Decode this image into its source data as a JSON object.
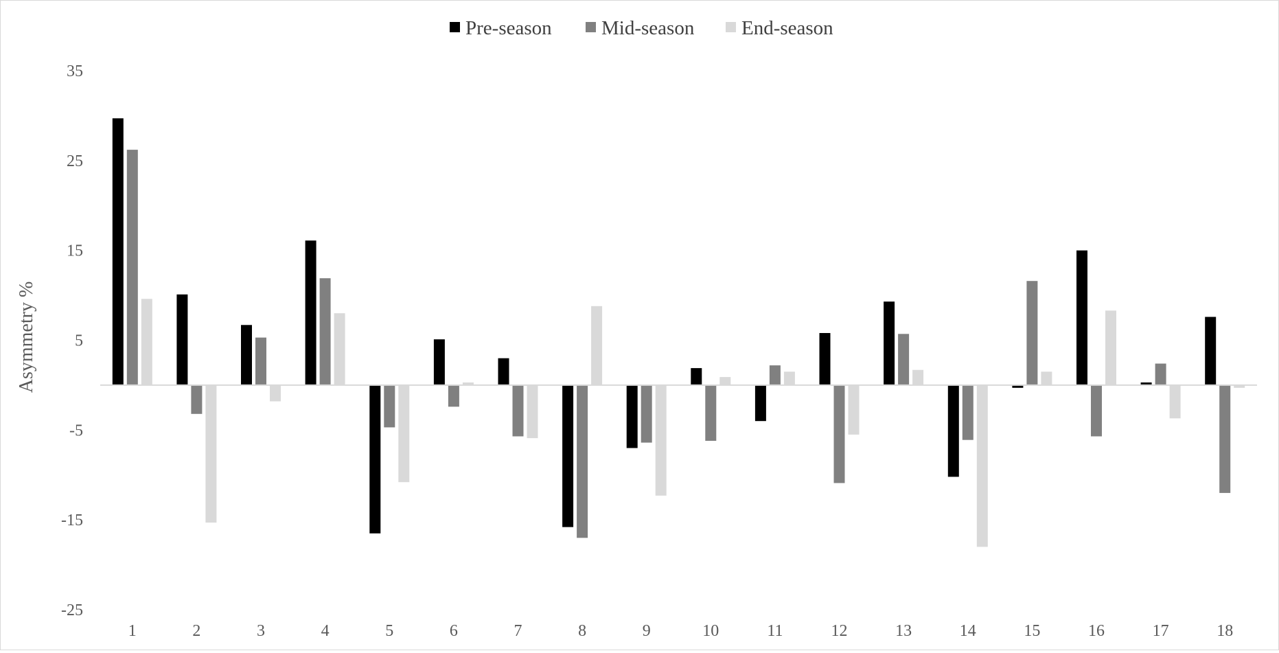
{
  "chart_data": {
    "type": "bar",
    "title": "",
    "xlabel": "",
    "ylabel": "Asymmetry %",
    "ylim": [
      -25,
      35
    ],
    "y_ticks": [
      35,
      25,
      15,
      5,
      -5,
      -15,
      -25
    ],
    "grid": false,
    "legend_position": "top-center",
    "categories": [
      "1",
      "2",
      "3",
      "4",
      "5",
      "6",
      "7",
      "8",
      "9",
      "10",
      "11",
      "12",
      "13",
      "14",
      "15",
      "16",
      "17",
      "18"
    ],
    "series": [
      {
        "name": "Pre-season",
        "color": "#000000",
        "values": [
          29.7,
          10.1,
          6.7,
          16.1,
          -16.5,
          5.1,
          3.0,
          -15.8,
          -7.0,
          1.9,
          -4.0,
          5.8,
          9.3,
          -10.2,
          -0.3,
          15.0,
          0.3,
          7.6
        ]
      },
      {
        "name": "Mid-season",
        "color": "#808080",
        "values": [
          26.2,
          -3.2,
          5.3,
          11.9,
          -4.7,
          -2.4,
          -5.7,
          -17.0,
          -6.4,
          -6.2,
          2.2,
          -10.9,
          5.7,
          -6.1,
          11.6,
          -5.7,
          2.4,
          -12.0
        ]
      },
      {
        "name": "End-season",
        "color": "#d9d9d9",
        "values": [
          9.6,
          -15.3,
          -1.8,
          8.0,
          -10.8,
          0.3,
          -5.9,
          8.8,
          -12.3,
          0.9,
          1.5,
          -5.5,
          1.7,
          -18.0,
          1.5,
          8.3,
          -3.7,
          -0.3
        ]
      }
    ]
  }
}
